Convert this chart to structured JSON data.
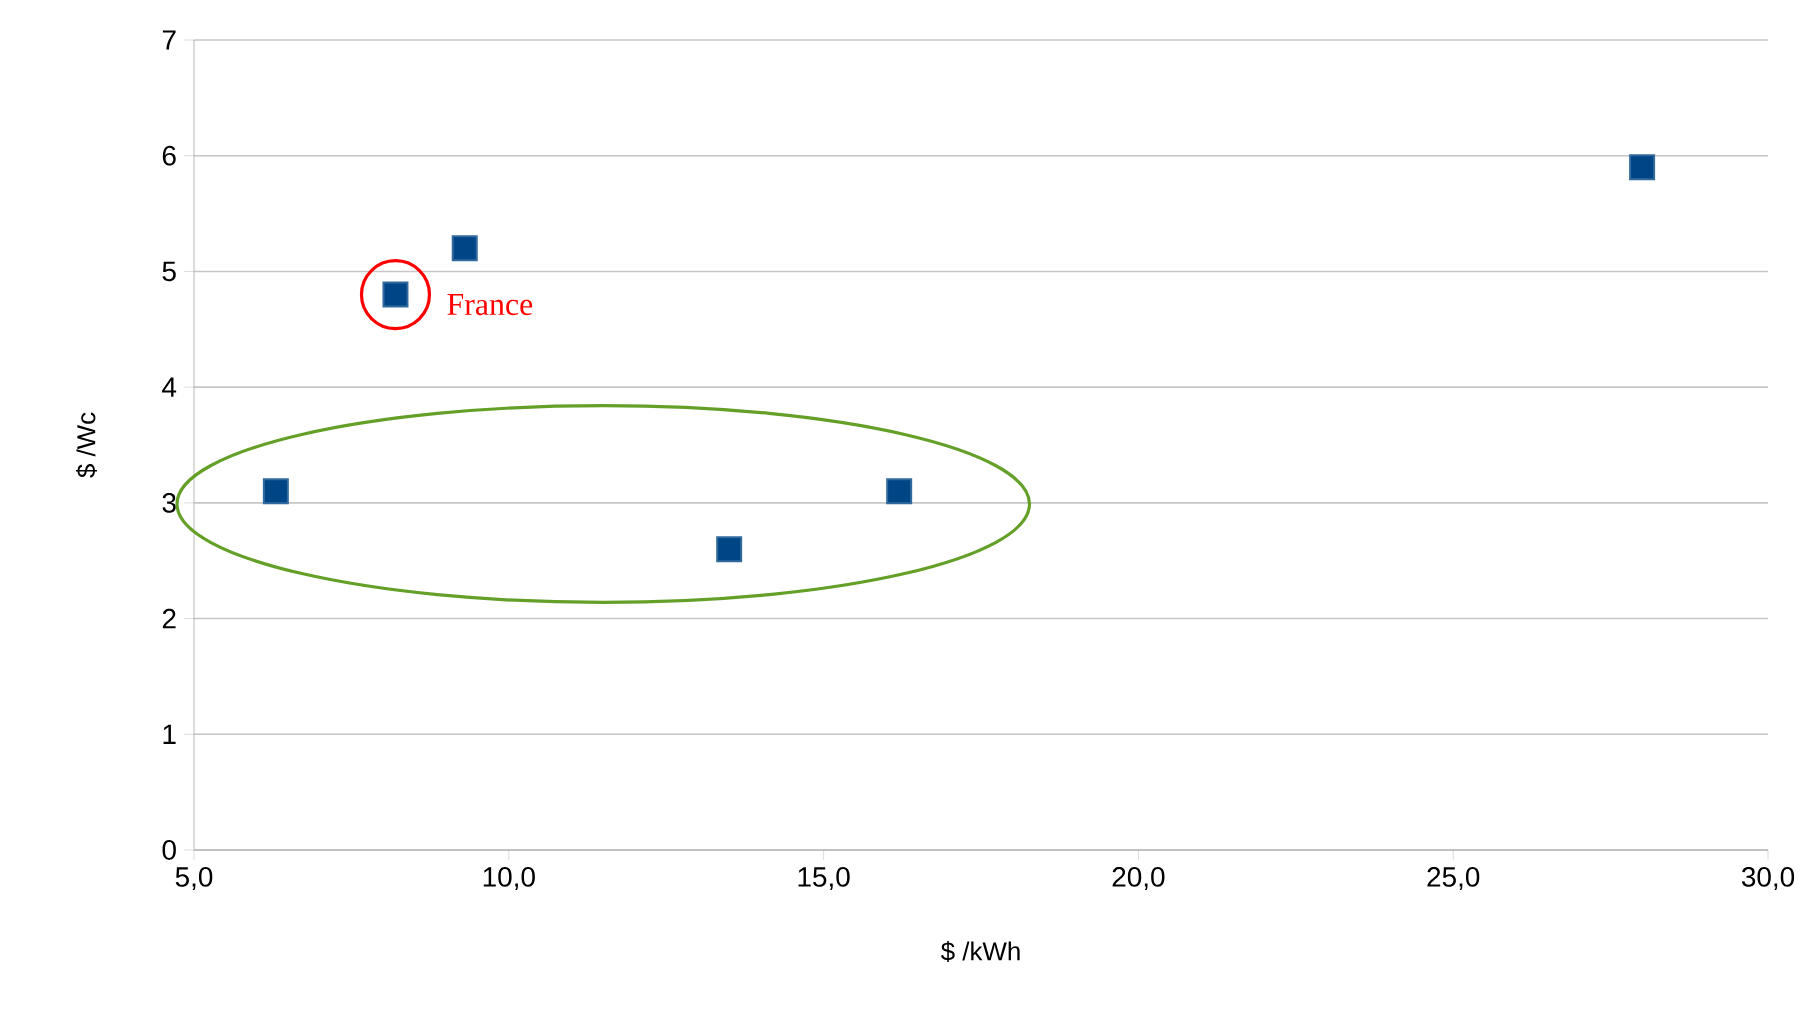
{
  "chart_data": {
    "type": "scatter",
    "xlabel": "$ /kWh",
    "ylabel": "$ /Wc",
    "series": [
      {
        "color": "#004586",
        "x": [
          6.3,
          8.2,
          9.3,
          13.5,
          16.2,
          28.0
        ],
        "values": [
          3.1,
          4.8,
          5.2,
          2.6,
          3.1,
          5.9
        ]
      }
    ],
    "marker": "square",
    "xlim": [
      5,
      30
    ],
    "ylim": [
      0,
      7
    ],
    "xticks": [
      {
        "value": 5,
        "label": "5,0"
      },
      {
        "value": 10,
        "label": "10,0"
      },
      {
        "value": 15,
        "label": "15,0"
      },
      {
        "value": 20,
        "label": "20,0"
      },
      {
        "value": 25,
        "label": "25,0"
      },
      {
        "value": 30,
        "label": "30,0"
      }
    ],
    "yticks": [
      0,
      1,
      2,
      3,
      4,
      5,
      6,
      7
    ],
    "grid": "y",
    "annotations": [
      {
        "text": "France",
        "x": 8.2,
        "y": 4.8
      }
    ]
  }
}
